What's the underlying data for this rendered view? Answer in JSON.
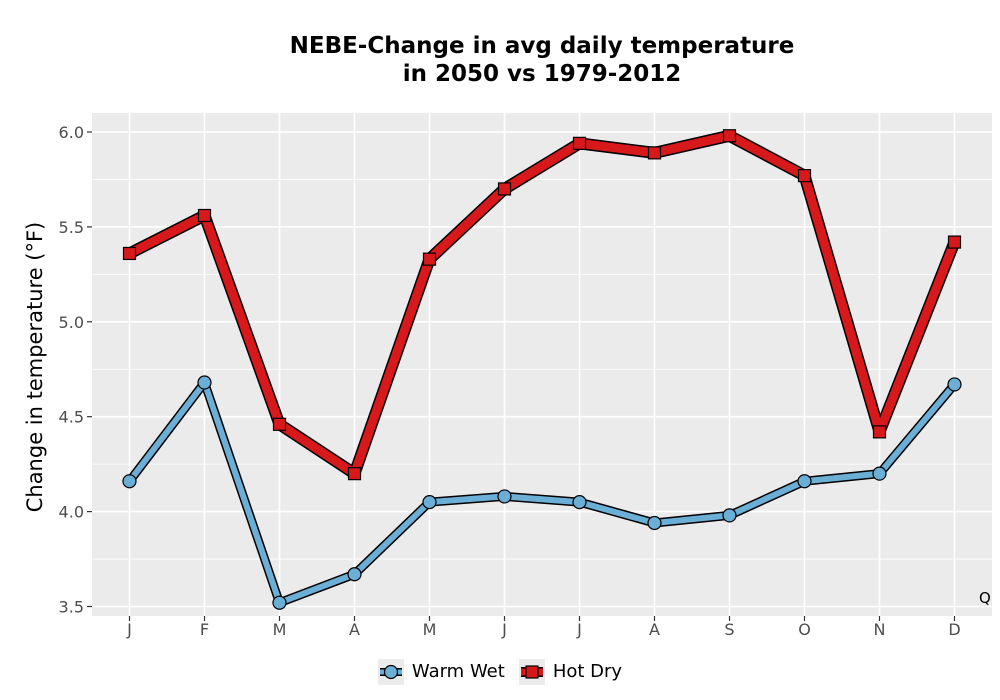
{
  "chart_data": {
    "type": "line",
    "title_lines": [
      "NEBE-Change in avg daily temperature",
      "in 2050 vs 1979-2012"
    ],
    "xlabel": "",
    "ylabel": "Change in temperature (°F)",
    "categories": [
      "J",
      "F",
      "M",
      "A",
      "M",
      "J",
      "J",
      "A",
      "S",
      "O",
      "N",
      "D"
    ],
    "ylim": [
      3.45,
      6.1
    ],
    "yticks": [
      3.5,
      4.0,
      4.5,
      5.0,
      5.5,
      6.0
    ],
    "ytick_labels": [
      "3.5",
      "4.0",
      "4.5",
      "5.0",
      "5.5",
      "6.0"
    ],
    "grid": true,
    "legend_position": "bottom",
    "series": [
      {
        "name": "Warm Wet",
        "color": "#6baed6",
        "marker": "circle",
        "values": [
          4.16,
          4.68,
          3.52,
          3.67,
          4.05,
          4.08,
          4.05,
          3.94,
          3.98,
          4.16,
          4.2,
          4.67
        ]
      },
      {
        "name": "Hot Dry",
        "color": "#d7191c",
        "marker": "square",
        "values": [
          5.36,
          5.56,
          4.46,
          4.2,
          5.33,
          5.7,
          5.94,
          5.89,
          5.98,
          5.77,
          4.42,
          5.42
        ]
      }
    ],
    "corner_tag": "Q"
  }
}
